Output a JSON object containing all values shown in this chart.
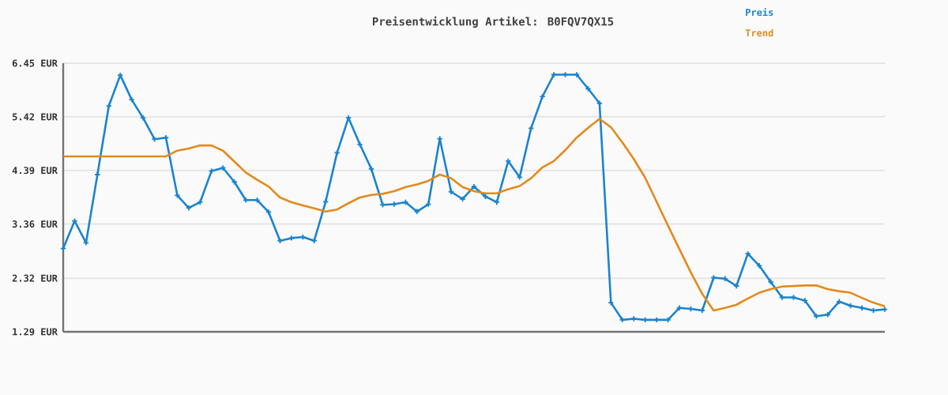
{
  "chart_data": {
    "type": "line",
    "title": "Preisentwicklung Artikel: B0FQV7QX15",
    "categories": [
      null,
      null,
      null,
      null,
      null,
      null,
      null,
      null,
      null,
      null,
      null,
      null,
      null,
      null,
      null,
      null,
      null,
      null,
      null,
      null,
      null,
      null,
      null,
      null,
      null,
      null,
      null,
      null,
      null,
      null,
      null,
      null,
      null,
      null,
      null,
      null,
      null,
      null,
      null,
      null,
      null,
      null,
      null,
      null,
      null,
      null,
      null,
      null,
      null,
      null,
      null,
      null,
      null,
      null,
      null,
      null,
      null,
      null,
      null,
      null,
      null,
      null,
      null,
      null,
      null,
      null,
      null,
      null,
      null,
      null,
      null,
      null,
      null
    ],
    "series": [
      {
        "name": "Preis",
        "color": "#1a84cf",
        "marker": "cross",
        "values": [
          2.89,
          3.42,
          3.0,
          4.31,
          5.63,
          6.22,
          5.75,
          5.4,
          4.99,
          5.02,
          3.91,
          3.67,
          3.78,
          4.38,
          4.44,
          4.17,
          3.82,
          3.82,
          3.59,
          3.04,
          3.09,
          3.11,
          3.04,
          3.79,
          4.73,
          5.4,
          4.89,
          4.42,
          3.73,
          3.74,
          3.78,
          3.6,
          3.74,
          5.0,
          3.98,
          3.84,
          4.08,
          3.89,
          3.78,
          4.57,
          4.26,
          5.2,
          5.81,
          6.23,
          6.23,
          6.23,
          5.96,
          5.68,
          1.85,
          1.52,
          1.54,
          1.52,
          1.52,
          1.52,
          1.75,
          1.73,
          1.7,
          2.33,
          2.31,
          2.17,
          2.79,
          2.56,
          2.25,
          1.95,
          1.95,
          1.89,
          1.59,
          1.62,
          1.87,
          1.79,
          1.75,
          1.7,
          1.72
        ]
      },
      {
        "name": "Trend",
        "color": "#e38a1d",
        "marker": "none",
        "values": [
          4.66,
          4.66,
          4.66,
          4.66,
          4.66,
          4.66,
          4.66,
          4.66,
          4.66,
          4.66,
          4.77,
          4.81,
          4.87,
          4.87,
          4.77,
          4.56,
          4.35,
          4.21,
          4.08,
          3.87,
          3.78,
          3.72,
          3.66,
          3.6,
          3.64,
          3.76,
          3.87,
          3.92,
          3.94,
          3.99,
          4.07,
          4.12,
          4.19,
          4.31,
          4.24,
          4.07,
          3.99,
          3.95,
          3.95,
          4.03,
          4.09,
          4.24,
          4.45,
          4.57,
          4.78,
          5.02,
          5.21,
          5.38,
          5.22,
          4.93,
          4.61,
          4.25,
          3.79,
          3.33,
          2.88,
          2.43,
          2.02,
          1.7,
          1.75,
          1.81,
          1.93,
          2.04,
          2.11,
          2.16,
          2.17,
          2.18,
          2.18,
          2.11,
          2.07,
          2.04,
          1.94,
          1.85,
          1.78
        ]
      }
    ],
    "ylim": [
      1.29,
      6.45
    ],
    "yticks": [
      {
        "value": 1.29,
        "label": "1.29 EUR"
      },
      {
        "value": 2.32,
        "label": "2.32 EUR"
      },
      {
        "value": 3.36,
        "label": "3.36 EUR"
      },
      {
        "value": 4.39,
        "label": "4.39 EUR"
      },
      {
        "value": 5.42,
        "label": "5.42 EUR"
      },
      {
        "value": 6.45,
        "label": "6.45 EUR"
      }
    ],
    "tick_labels": "y",
    "grid": "y",
    "legend": "top right",
    "line_style": "solid"
  }
}
